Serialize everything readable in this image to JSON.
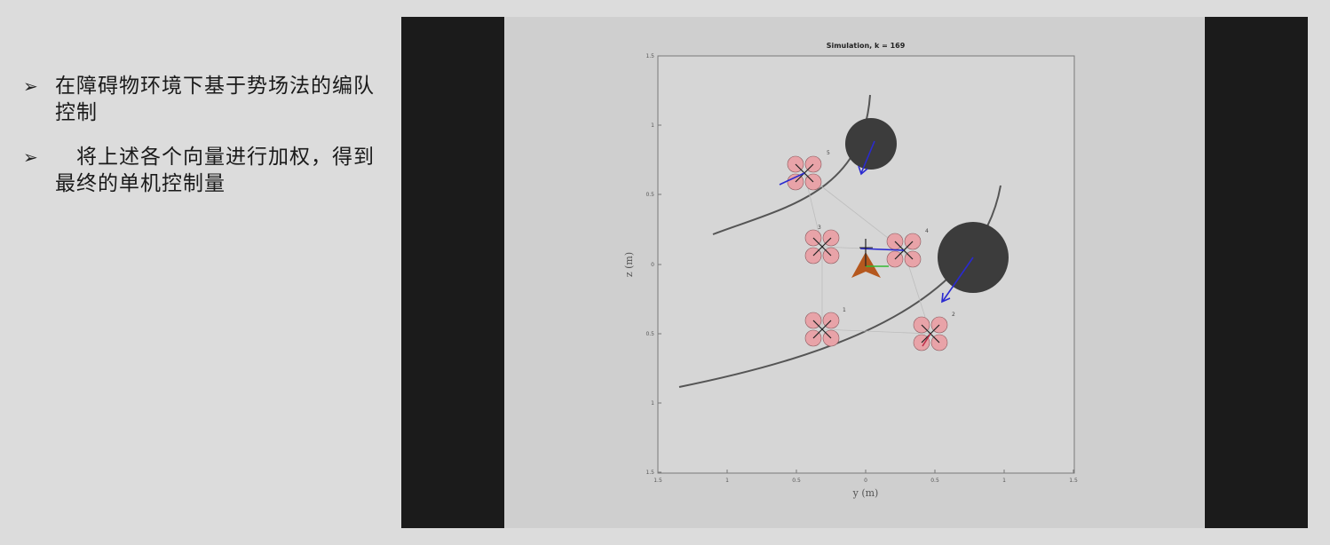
{
  "bullets": [
    {
      "marker": "➢",
      "text": "在障碍物环境下基于势场法的编队控制"
    },
    {
      "marker": "➢",
      "text": "　将上述各个向量进行加权，得到最终的单机控制量"
    }
  ],
  "plot": {
    "title": "Simulation, k = 169",
    "xlabel": "y (m)",
    "ylabel": "z (m)",
    "x_ticks": [
      "1.5",
      "1",
      "0.5",
      "0",
      "0.5",
      "1",
      "1.5"
    ],
    "y_ticks": [
      "1.5",
      "1",
      "0.5",
      "0",
      "0.5",
      "1",
      "1.5"
    ],
    "drone_labels": [
      "5",
      "3",
      "4",
      "1",
      "2"
    ]
  },
  "colors": {
    "background": "#dcdcdc",
    "video_bg": "#cfcfcf",
    "bars": "#1b1b1b",
    "obstacle": "#3c3c3c",
    "rotor": "#e8a3a8",
    "arrow": "#2a2ad0",
    "leader": "#b5581e"
  }
}
